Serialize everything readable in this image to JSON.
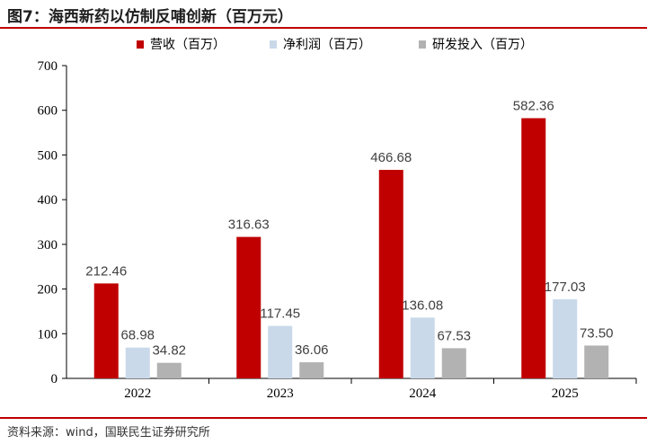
{
  "header": {
    "title": "图7：海西新药以仿制反哺创新（百万元）"
  },
  "footer": {
    "source": "资料来源：wind，国联民生证券研究所"
  },
  "chart_data": {
    "type": "bar",
    "title": "图7：海西新药以仿制反哺创新（百万元）",
    "categories": [
      "2022",
      "2023",
      "2024",
      "2025"
    ],
    "series": [
      {
        "name": "营收（百万）",
        "color": "#c00000",
        "values": [
          212.46,
          316.63,
          466.68,
          582.36
        ]
      },
      {
        "name": "净利润（百万）",
        "color": "#c9d9ea",
        "values": [
          68.98,
          117.45,
          136.08,
          177.03
        ]
      },
      {
        "name": "研发投入（百万）",
        "color": "#b2b2b2",
        "values": [
          34.82,
          36.06,
          67.53,
          73.5
        ]
      }
    ],
    "ylim": [
      0,
      700
    ],
    "yticks": [
      0,
      100,
      200,
      300,
      400,
      500,
      600,
      700
    ],
    "grid": false,
    "legend": "top"
  }
}
